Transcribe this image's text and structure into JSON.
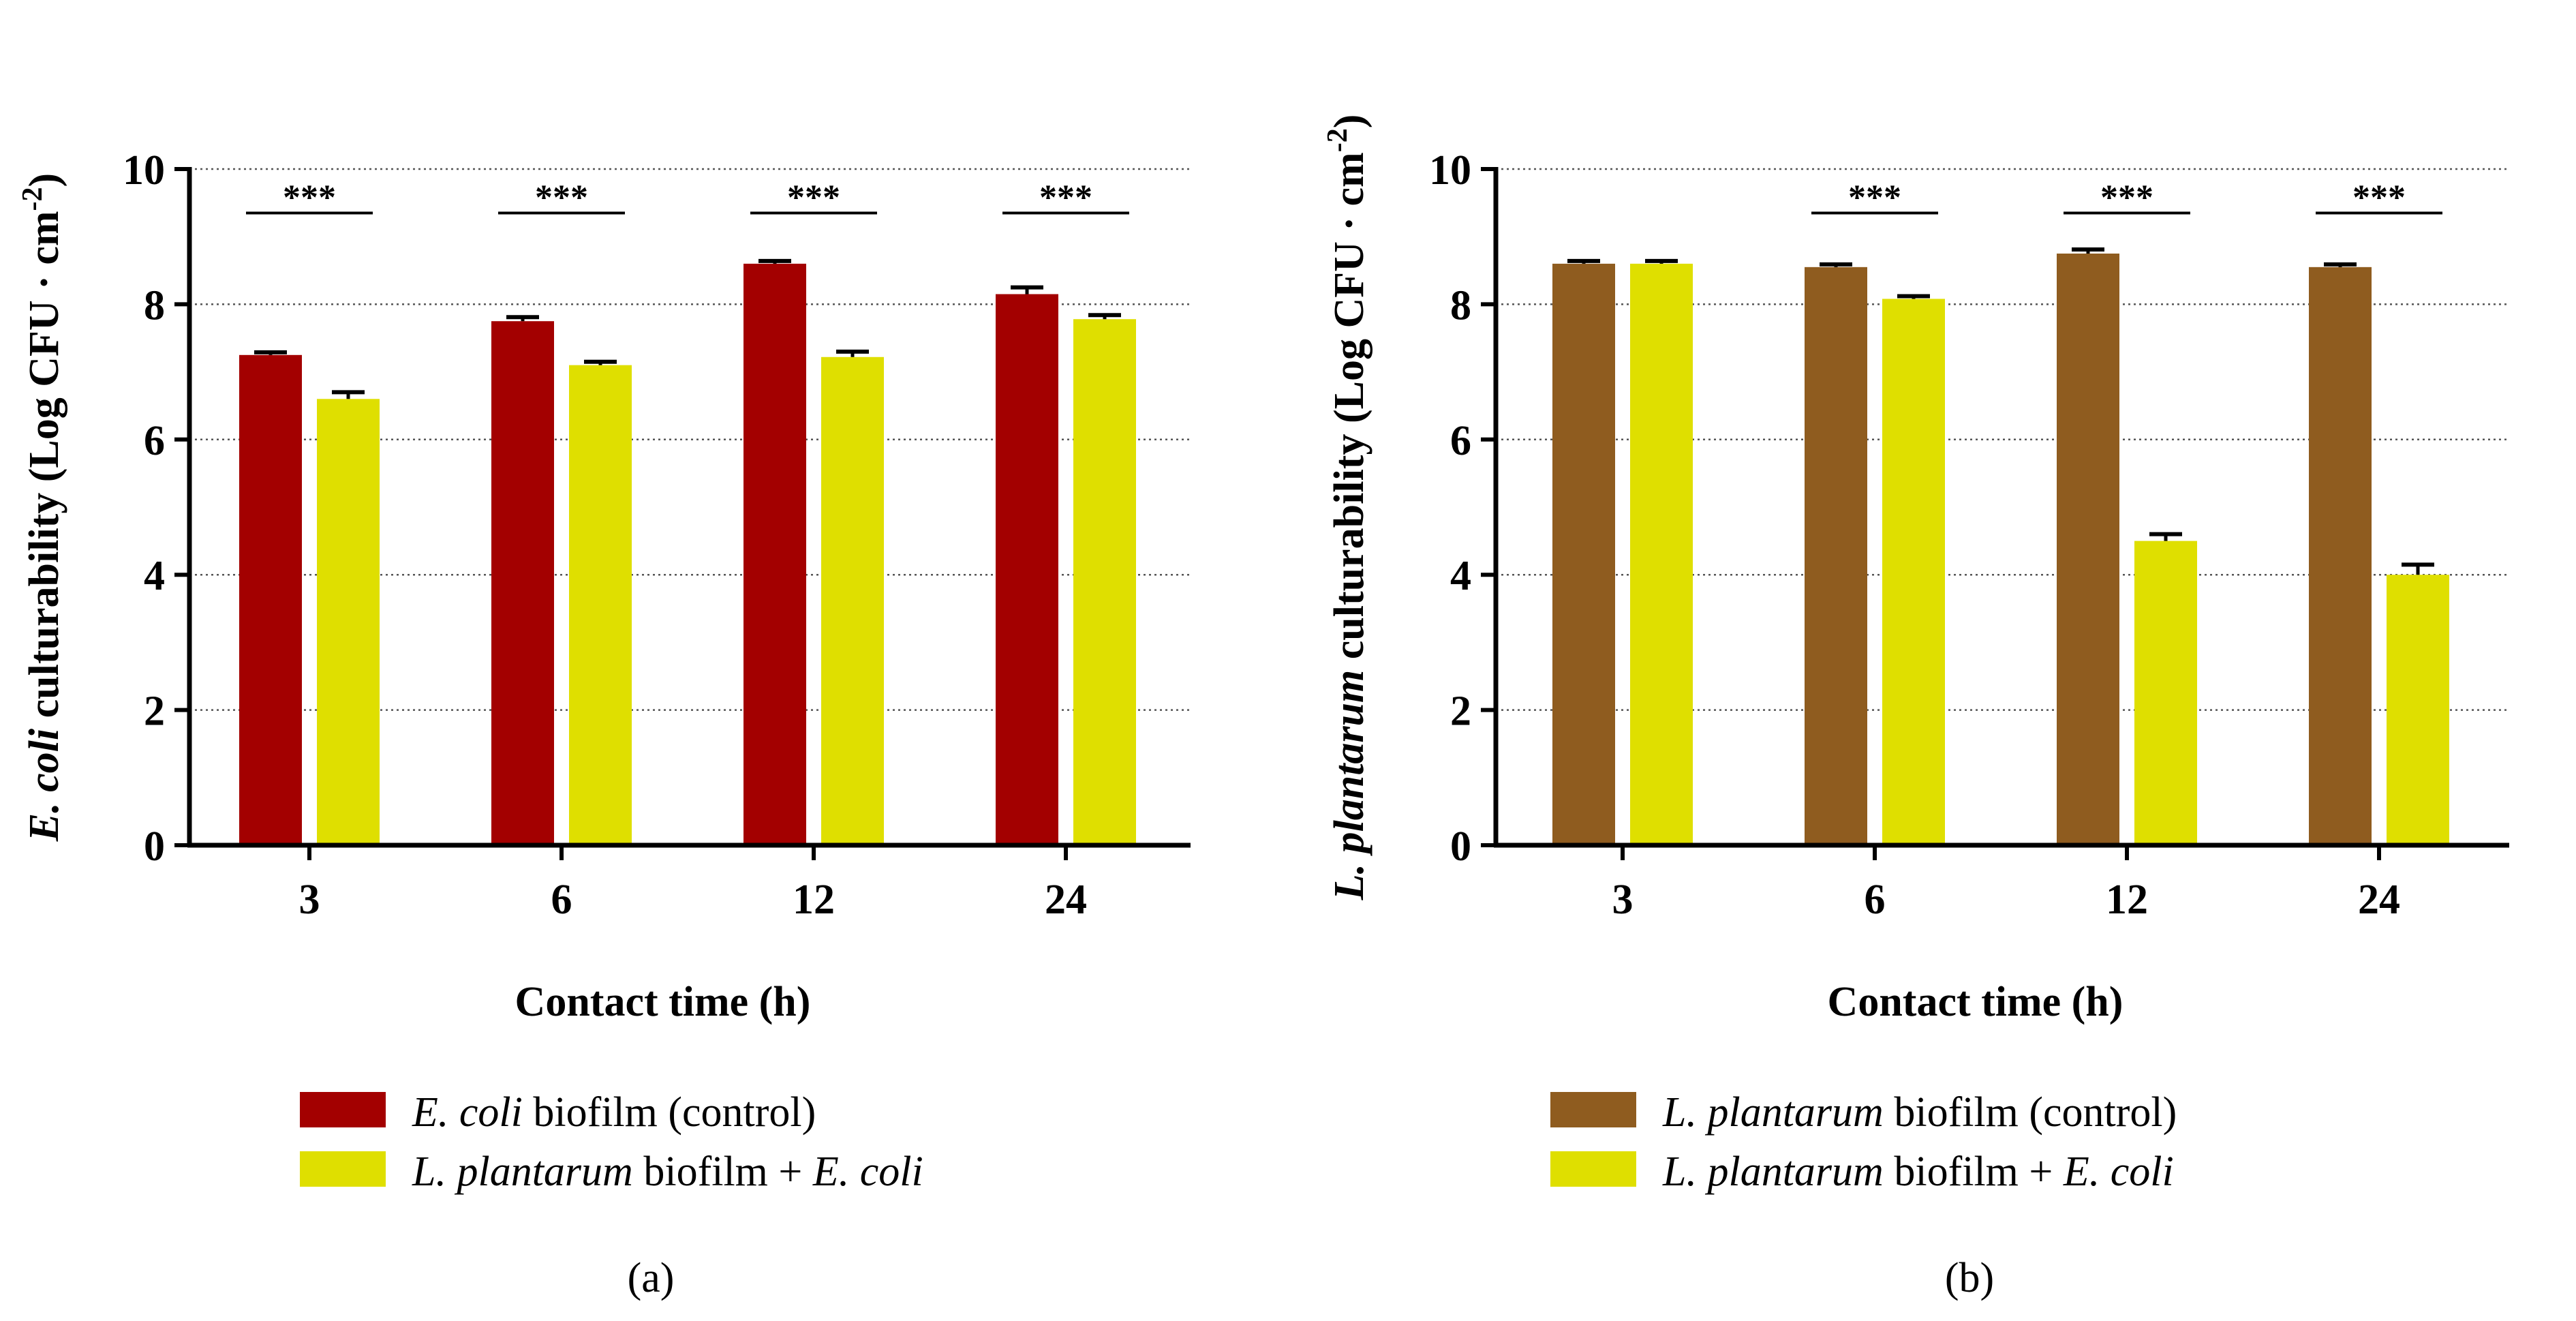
{
  "chart_data": [
    {
      "panel_label": "(a)",
      "type": "bar",
      "categories": [
        "3",
        "6",
        "12",
        "24"
      ],
      "xlabel": "Contact time (h)",
      "ylabel": {
        "italic": "E. coli",
        "rest": " culturability (Log CFU · cm",
        "sup": "-2",
        "close": ")"
      },
      "ylim": [
        0,
        10
      ],
      "yticks": [
        "0",
        "2",
        "4",
        "6",
        "8",
        "10"
      ],
      "grid": "dotted horizontal",
      "series": [
        {
          "name": "E. coli biofilm (control)",
          "legend_italic": "E. coli",
          "legend_rest": " biofilm (control)",
          "legend_after": "",
          "color": "#a30000",
          "values": [
            7.25,
            7.75,
            8.6,
            8.15
          ],
          "errors": [
            0.04,
            0.06,
            0.04,
            0.1
          ]
        },
        {
          "name": "L. plantarum biofilm + E. coli",
          "legend_italic": "L. plantarum",
          "legend_rest": " biofilm + ",
          "legend_after": "E. coli",
          "color": "#dfdf00",
          "values": [
            6.6,
            7.1,
            7.22,
            7.78
          ],
          "errors": [
            0.1,
            0.05,
            0.08,
            0.06
          ]
        }
      ],
      "significance": [
        "***",
        "***",
        "***",
        "***"
      ]
    },
    {
      "panel_label": "(b)",
      "type": "bar",
      "categories": [
        "3",
        "6",
        "12",
        "24"
      ],
      "xlabel": "Contact time (h)",
      "ylabel": {
        "italic": "L. plantarum",
        "rest": " culturability (Log CFU · cm",
        "sup": "-2",
        "close": ")"
      },
      "ylim": [
        0,
        10
      ],
      "yticks": [
        "0",
        "2",
        "4",
        "6",
        "8",
        "10"
      ],
      "grid": "dotted horizontal",
      "series": [
        {
          "name": "L. plantarum biofilm (control)",
          "legend_italic": "L. plantarum",
          "legend_rest": " biofilm (control)",
          "legend_after": "",
          "color": "#8f5c1f",
          "values": [
            8.6,
            8.55,
            8.75,
            8.55
          ],
          "errors": [
            0.04,
            0.04,
            0.06,
            0.04
          ]
        },
        {
          "name": "L. plantarum biofilm + E. coli",
          "legend_italic": "L. plantarum",
          "legend_rest": " biofilm + ",
          "legend_after": "E. coli",
          "color": "#dfdf00",
          "values": [
            8.6,
            8.08,
            4.5,
            4.0
          ],
          "errors": [
            0.04,
            0.04,
            0.1,
            0.15
          ]
        }
      ],
      "significance": [
        "",
        "***",
        "***",
        "***"
      ]
    }
  ]
}
